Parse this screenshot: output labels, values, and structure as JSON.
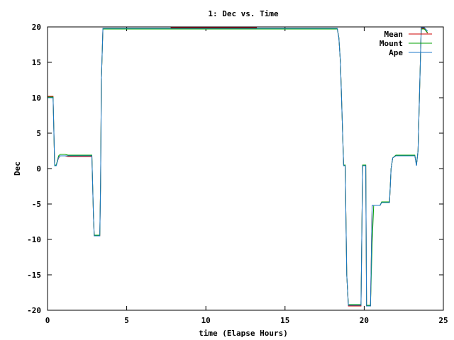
{
  "chart_data": {
    "type": "line",
    "title": "1: Dec vs. Time",
    "xlabel": "time (Elapse Hours)",
    "ylabel": "Dec",
    "xlim": [
      0,
      25
    ],
    "ylim": [
      -20,
      20
    ],
    "xticks": [
      0,
      5,
      10,
      15,
      20,
      25
    ],
    "yticks": [
      -20,
      -15,
      -10,
      -5,
      0,
      5,
      10,
      15,
      20
    ],
    "legend_position": "top-right",
    "series": [
      {
        "name": "Mean",
        "color": "#cc0000",
        "points": [
          [
            0.0,
            10.2
          ],
          [
            0.35,
            10.2
          ],
          [
            0.4,
            5.5
          ],
          [
            0.45,
            0.5
          ],
          [
            0.55,
            0.5
          ],
          [
            0.7,
            1.5
          ],
          [
            0.8,
            1.8
          ],
          [
            1.1,
            1.8
          ],
          [
            1.3,
            1.7
          ],
          [
            2.8,
            1.7
          ],
          [
            2.9,
            -6.5
          ],
          [
            2.95,
            -9.5
          ],
          [
            3.3,
            -9.5
          ],
          [
            3.35,
            -2.0
          ],
          [
            3.4,
            12.5
          ],
          [
            3.5,
            19.8
          ],
          [
            7.8,
            19.8
          ],
          [
            7.8,
            19.9
          ],
          [
            13.2,
            19.9
          ],
          [
            13.2,
            19.8
          ],
          [
            17.2,
            19.8
          ],
          [
            17.2,
            19.7
          ],
          [
            18.3,
            19.7
          ],
          [
            18.4,
            18.5
          ],
          [
            18.5,
            15
          ],
          [
            18.7,
            0.5
          ],
          [
            18.8,
            0.5
          ],
          [
            18.9,
            -15
          ],
          [
            19.0,
            -19.4
          ],
          [
            19.8,
            -19.4
          ],
          [
            19.9,
            0.5
          ],
          [
            20.1,
            0.5
          ],
          [
            20.15,
            -19.4
          ],
          [
            20.4,
            -19.4
          ],
          [
            20.5,
            -5.2
          ],
          [
            21.0,
            -5.2
          ],
          [
            21.1,
            -4.8
          ],
          [
            21.6,
            -4.8
          ],
          [
            21.7,
            0
          ],
          [
            21.8,
            1.5
          ],
          [
            22.0,
            1.8
          ],
          [
            23.2,
            1.8
          ],
          [
            23.3,
            0.5
          ],
          [
            23.4,
            2.5
          ],
          [
            23.5,
            11
          ],
          [
            23.6,
            19.8
          ],
          [
            23.8,
            19.8
          ],
          [
            24.0,
            19.1
          ]
        ]
      },
      {
        "name": "Mount",
        "color": "#00a000",
        "points": [
          [
            0.0,
            10.1
          ],
          [
            0.35,
            10.1
          ],
          [
            0.4,
            5.5
          ],
          [
            0.45,
            0.5
          ],
          [
            0.55,
            0.5
          ],
          [
            0.7,
            1.8
          ],
          [
            0.8,
            2.0
          ],
          [
            1.1,
            2.0
          ],
          [
            1.3,
            1.9
          ],
          [
            2.8,
            1.9
          ],
          [
            2.9,
            -6.5
          ],
          [
            2.95,
            -9.4
          ],
          [
            3.3,
            -9.4
          ],
          [
            3.35,
            -2.0
          ],
          [
            3.4,
            12.5
          ],
          [
            3.5,
            19.7
          ],
          [
            7.8,
            19.7
          ],
          [
            13.2,
            19.7
          ],
          [
            17.2,
            19.7
          ],
          [
            18.3,
            19.7
          ],
          [
            18.4,
            18.5
          ],
          [
            18.5,
            15
          ],
          [
            18.7,
            0.5
          ],
          [
            18.8,
            0.5
          ],
          [
            18.9,
            -15
          ],
          [
            19.0,
            -19.2
          ],
          [
            19.8,
            -19.2
          ],
          [
            19.9,
            0.5
          ],
          [
            20.1,
            0.5
          ],
          [
            20.15,
            -19.3
          ],
          [
            20.4,
            -19.3
          ],
          [
            20.5,
            -10.5
          ],
          [
            20.6,
            -5.2
          ],
          [
            21.0,
            -5.2
          ],
          [
            21.1,
            -4.7
          ],
          [
            21.6,
            -4.7
          ],
          [
            21.7,
            0
          ],
          [
            21.8,
            1.5
          ],
          [
            22.0,
            1.9
          ],
          [
            23.2,
            1.9
          ],
          [
            23.3,
            0.5
          ],
          [
            23.4,
            2.5
          ],
          [
            23.5,
            11
          ],
          [
            23.6,
            19.7
          ],
          [
            23.8,
            19.7
          ],
          [
            24.0,
            19.2
          ]
        ]
      },
      {
        "name": "Ape",
        "color": "#1e78c8",
        "points": [
          [
            0.0,
            10.0
          ],
          [
            0.35,
            10.0
          ],
          [
            0.4,
            5.5
          ],
          [
            0.45,
            0.4
          ],
          [
            0.55,
            0.4
          ],
          [
            0.7,
            1.6
          ],
          [
            0.8,
            1.8
          ],
          [
            1.1,
            1.8
          ],
          [
            1.3,
            1.8
          ],
          [
            2.8,
            1.8
          ],
          [
            2.9,
            -6.5
          ],
          [
            2.95,
            -9.5
          ],
          [
            3.3,
            -9.5
          ],
          [
            3.35,
            -2.0
          ],
          [
            3.4,
            12.5
          ],
          [
            3.5,
            19.8
          ],
          [
            7.8,
            19.8
          ],
          [
            13.2,
            19.8
          ],
          [
            17.2,
            19.8
          ],
          [
            18.3,
            19.8
          ],
          [
            18.4,
            18.4
          ],
          [
            18.5,
            15
          ],
          [
            18.7,
            0.4
          ],
          [
            18.8,
            0.4
          ],
          [
            18.9,
            -15
          ],
          [
            19.0,
            -19.3
          ],
          [
            19.8,
            -19.3
          ],
          [
            19.9,
            0.4
          ],
          [
            20.1,
            0.4
          ],
          [
            20.15,
            -19.4
          ],
          [
            20.4,
            -19.4
          ],
          [
            20.5,
            -5.2
          ],
          [
            21.0,
            -5.2
          ],
          [
            21.1,
            -4.8
          ],
          [
            21.6,
            -4.8
          ],
          [
            21.7,
            0
          ],
          [
            21.8,
            1.5
          ],
          [
            22.0,
            1.8
          ],
          [
            23.2,
            1.8
          ],
          [
            23.3,
            0.4
          ],
          [
            23.4,
            2.5
          ],
          [
            23.5,
            11
          ],
          [
            23.6,
            19.9
          ],
          [
            23.8,
            19.9
          ],
          [
            24.0,
            19.4
          ]
        ]
      }
    ]
  }
}
